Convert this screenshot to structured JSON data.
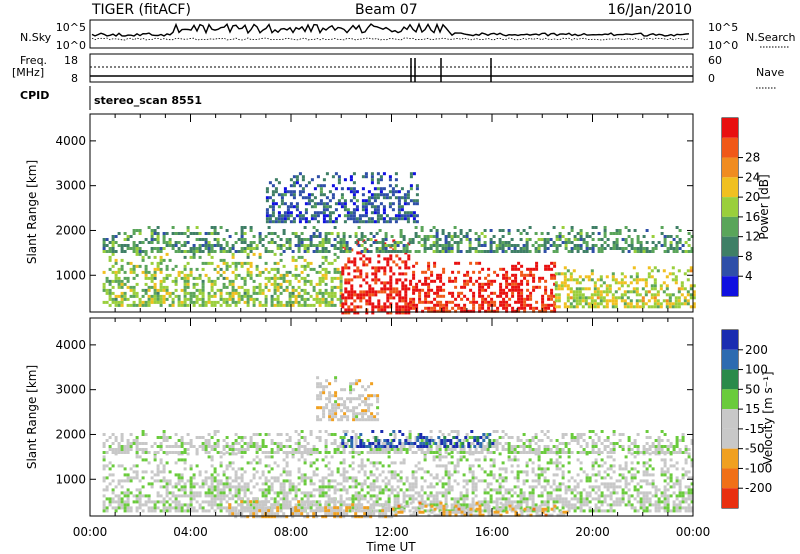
{
  "header": {
    "radar": "TIGER (fitACF)",
    "beam": "Beam 07",
    "date": "16/Jan/2010"
  },
  "strips": {
    "nsky_label": "N.Sky",
    "nsky_ticks": [
      "10^5",
      "10^0"
    ],
    "nsearch_label": "N.Search",
    "nsearch_ticks": [
      "10^5",
      "10^0"
    ],
    "freq_label_1": "Freq.",
    "freq_label_2": "[MHz]",
    "freq_ticks": [
      "18",
      "8"
    ],
    "nave_label": "Nave",
    "nave_ticks": [
      "60",
      "0"
    ],
    "cpid_label": "CPID",
    "cpid_value": "stereo_scan 8551"
  },
  "axes": {
    "x_label": "Time UT",
    "x_ticks": [
      "00:00",
      "04:00",
      "08:00",
      "12:00",
      "16:00",
      "20:00",
      "00:00"
    ],
    "y_label": "Slant Range [km]",
    "y_ticks": [
      "1000",
      "2000",
      "3000",
      "4000"
    ]
  },
  "colorbars": {
    "power": {
      "label": "Power [dB]",
      "ticks": [
        "4",
        "8",
        "12",
        "16",
        "20",
        "24",
        "28"
      ],
      "colors": [
        "#1010e0",
        "#2f4fa8",
        "#3f7f66",
        "#5aa55a",
        "#9acf3c",
        "#f0c020",
        "#f08c20",
        "#f05818",
        "#e81010"
      ]
    },
    "velocity": {
      "label": "Velocity [m s⁻¹]",
      "ticks": [
        "200",
        "100",
        "50",
        "15",
        "-15",
        "-50",
        "-100",
        "-200"
      ],
      "colors": [
        "#1a2cb0",
        "#2d6bb0",
        "#2a8a4a",
        "#6acb3c",
        "#c8c8c8",
        "#c8c8c8",
        "#f0a020",
        "#f07018",
        "#e83010"
      ]
    }
  },
  "chart_data": [
    {
      "type": "heatmap",
      "title": "Power",
      "xlabel": "Time UT",
      "ylabel": "Slant Range [km]",
      "xlim": [
        "00:00",
        "24:00"
      ],
      "ylim": [
        180,
        4600
      ],
      "colorbar_label": "Power [dB]",
      "colorbar_range": [
        0,
        30
      ],
      "regions": [
        {
          "t0": 0.5,
          "t1": 10.0,
          "r0": 300,
          "r1": 1500,
          "value": 14
        },
        {
          "t0": 10.0,
          "t1": 12.7,
          "r0": 180,
          "r1": 1800,
          "value": 28
        },
        {
          "t0": 12.7,
          "t1": 18.5,
          "r0": 180,
          "r1": 1300,
          "value": 28
        },
        {
          "t0": 18.5,
          "t1": 24.0,
          "r0": 300,
          "r1": 1200,
          "value": 16
        },
        {
          "t0": 0.5,
          "t1": 24.0,
          "r0": 1500,
          "r1": 2100,
          "value": 10
        },
        {
          "t0": 7.0,
          "t1": 13.0,
          "r0": 2200,
          "r1": 3300,
          "value": 6
        }
      ]
    },
    {
      "type": "heatmap",
      "title": "Velocity",
      "xlabel": "Time UT",
      "ylabel": "Slant Range [km]",
      "xlim": [
        "00:00",
        "24:00"
      ],
      "ylim": [
        180,
        4600
      ],
      "colorbar_label": "Velocity [m s⁻¹]",
      "colorbar_range": [
        -200,
        200
      ],
      "regions": [
        {
          "t0": 0.5,
          "t1": 24.0,
          "r0": 300,
          "r1": 1600,
          "value": 0
        },
        {
          "t0": 0.5,
          "t1": 24.0,
          "r0": 1600,
          "r1": 2100,
          "value": 0
        },
        {
          "t0": 5.5,
          "t1": 12.0,
          "r0": 180,
          "r1": 600,
          "value": -40
        },
        {
          "t0": 12.0,
          "t1": 19.0,
          "r0": 180,
          "r1": 500,
          "value": -60
        },
        {
          "t0": 10.0,
          "t1": 16.0,
          "r0": 1700,
          "r1": 2100,
          "value": 150
        },
        {
          "t0": 9.0,
          "t1": 11.5,
          "r0": 2300,
          "r1": 3300,
          "value": -30
        }
      ]
    }
  ]
}
